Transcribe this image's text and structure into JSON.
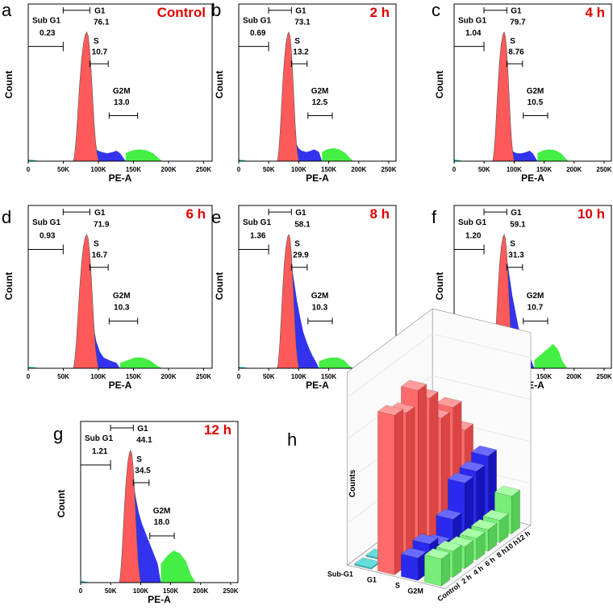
{
  "x_ticks": [
    "0",
    "50K",
    "100K",
    "150K",
    "200K",
    "250K"
  ],
  "x_label": "PE-A",
  "y_label": "Count",
  "gate_names": {
    "subg1": "Sub G1",
    "g1": "G1",
    "s": "S",
    "g2m": "G2M"
  },
  "colors": {
    "g1": "#ff5a5a",
    "s": "#3333ee",
    "g2m": "#44ee44",
    "subg1": "#33cccc",
    "title": "#e00000"
  },
  "chart_data": [
    {
      "type": "histogram",
      "panel": "a",
      "title": "Control",
      "subg1": "0.23",
      "g1": "76.1",
      "s": "10.7",
      "g2m": "13.0"
    },
    {
      "type": "histogram",
      "panel": "b",
      "title": "2 h",
      "subg1": "0.69",
      "g1": "73.1",
      "s": "13.2",
      "g2m": "12.5"
    },
    {
      "type": "histogram",
      "panel": "c",
      "title": "4 h",
      "subg1": "1.04",
      "g1": "79.7",
      "s": "8.76",
      "g2m": "10.5"
    },
    {
      "type": "histogram",
      "panel": "d",
      "title": "6 h",
      "subg1": "0.93",
      "g1": "71.9",
      "s": "16.7",
      "g2m": "10.3"
    },
    {
      "type": "histogram",
      "panel": "e",
      "title": "8 h",
      "subg1": "1.36",
      "g1": "58.1",
      "s": "29.9",
      "g2m": "10.3"
    },
    {
      "type": "histogram",
      "panel": "f",
      "title": "10 h",
      "subg1": "1.20",
      "g1": "59.1",
      "s": "31.3",
      "g2m": "10.7"
    },
    {
      "type": "histogram",
      "panel": "g",
      "title": "12 h",
      "subg1": "1.21",
      "g1": "44.1",
      "s": "34.5",
      "g2m": "18.0"
    },
    {
      "type": "bar3d",
      "panel": "h",
      "ylabel": "Counts",
      "categories": [
        "Control",
        "2 h",
        "4 h",
        "6 h",
        "8 h",
        "10 h",
        "12 h"
      ],
      "phases": [
        "Sub-G1",
        "G1",
        "S",
        "G2M"
      ],
      "series": [
        {
          "name": "Sub-G1",
          "values": [
            0.23,
            0.69,
            1.04,
            0.93,
            1.36,
            1.2,
            1.21
          ]
        },
        {
          "name": "G1",
          "values": [
            76.1,
            73.1,
            79.7,
            71.9,
            58.1,
            59.1,
            44.1
          ]
        },
        {
          "name": "S",
          "values": [
            10.7,
            13.2,
            8.76,
            16.7,
            29.9,
            31.3,
            34.5
          ]
        },
        {
          "name": "G2M",
          "values": [
            13.0,
            12.5,
            10.5,
            10.3,
            10.3,
            10.7,
            18.0
          ]
        }
      ]
    }
  ]
}
